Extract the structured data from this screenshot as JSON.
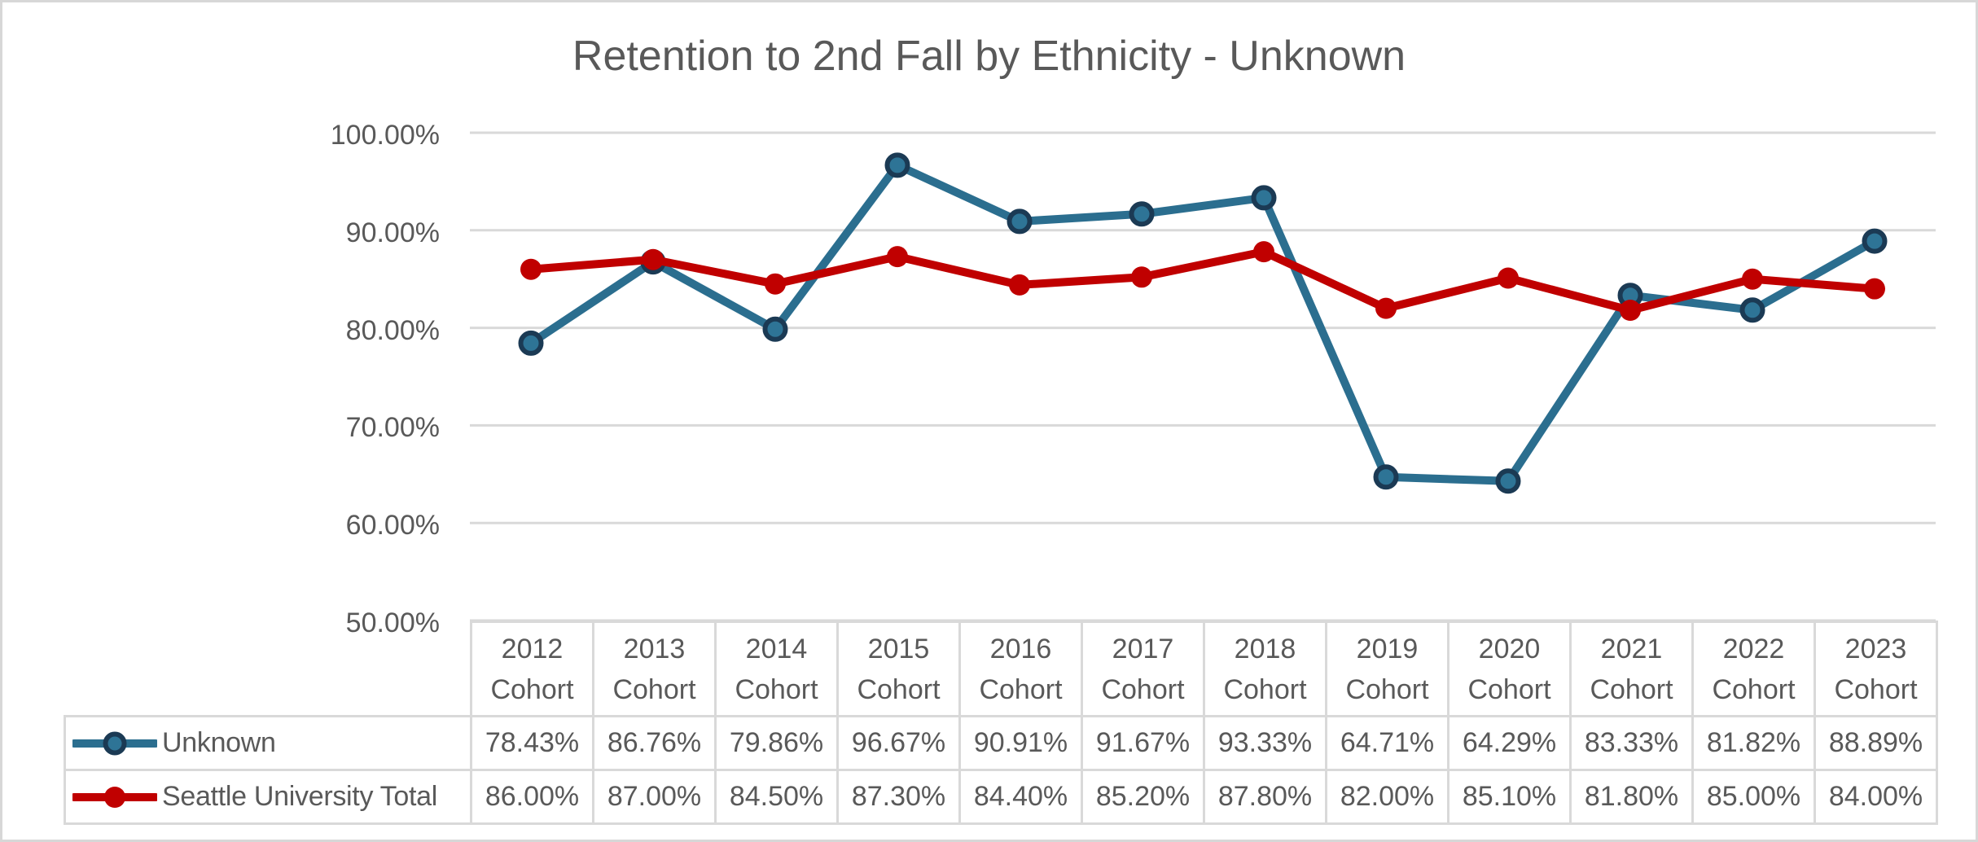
{
  "chart": {
    "title": "Retention to 2nd Fall by Ethnicity - Unknown",
    "y_axis": {
      "tick_labels": [
        "100.00%",
        "90.00%",
        "80.00%",
        "70.00%",
        "60.00%",
        "50.00%"
      ]
    },
    "cohort_word": "Cohort",
    "years": [
      "2012",
      "2013",
      "2014",
      "2015",
      "2016",
      "2017",
      "2018",
      "2019",
      "2020",
      "2021",
      "2022",
      "2023"
    ]
  },
  "chart_data": {
    "type": "line",
    "title": "Retention to 2nd Fall by Ethnicity - Unknown",
    "categories": [
      "2012 Cohort",
      "2013 Cohort",
      "2014 Cohort",
      "2015 Cohort",
      "2016 Cohort",
      "2017 Cohort",
      "2018 Cohort",
      "2019 Cohort",
      "2020 Cohort",
      "2021 Cohort",
      "2022 Cohort",
      "2023 Cohort"
    ],
    "series": [
      {
        "name": "Unknown",
        "values": [
          78.43,
          86.76,
          79.86,
          96.67,
          90.91,
          91.67,
          93.33,
          64.71,
          64.29,
          83.33,
          81.82,
          88.89
        ],
        "display": [
          "78.43%",
          "86.76%",
          "79.86%",
          "96.67%",
          "90.91%",
          "91.67%",
          "93.33%",
          "64.71%",
          "64.29%",
          "83.33%",
          "81.82%",
          "88.89%"
        ],
        "line_color": "#2B6E8F",
        "marker_fill": "#2E7496",
        "marker_stroke": "#1B3A54"
      },
      {
        "name": "Seattle University Total",
        "values": [
          86.0,
          87.0,
          84.5,
          87.3,
          84.4,
          85.2,
          87.8,
          82.0,
          85.1,
          81.8,
          85.0,
          84.0
        ],
        "display": [
          "86.00%",
          "87.00%",
          "84.50%",
          "87.30%",
          "84.40%",
          "85.20%",
          "87.80%",
          "82.00%",
          "85.10%",
          "81.80%",
          "85.00%",
          "84.00%"
        ],
        "line_color": "#C00000",
        "marker_fill": "#C00000",
        "marker_stroke": "#C00000"
      }
    ],
    "ylim": [
      50,
      100
    ],
    "y_tick_step": 10,
    "grid": true,
    "xlabel": "",
    "ylabel": "",
    "legend_position": "data-table-left"
  },
  "colors": {
    "text": "#595959",
    "gridline": "#D9D9D9",
    "table_border": "#D9D9D9",
    "frame_border": "#D7D7D7",
    "background": "#FFFFFF"
  }
}
